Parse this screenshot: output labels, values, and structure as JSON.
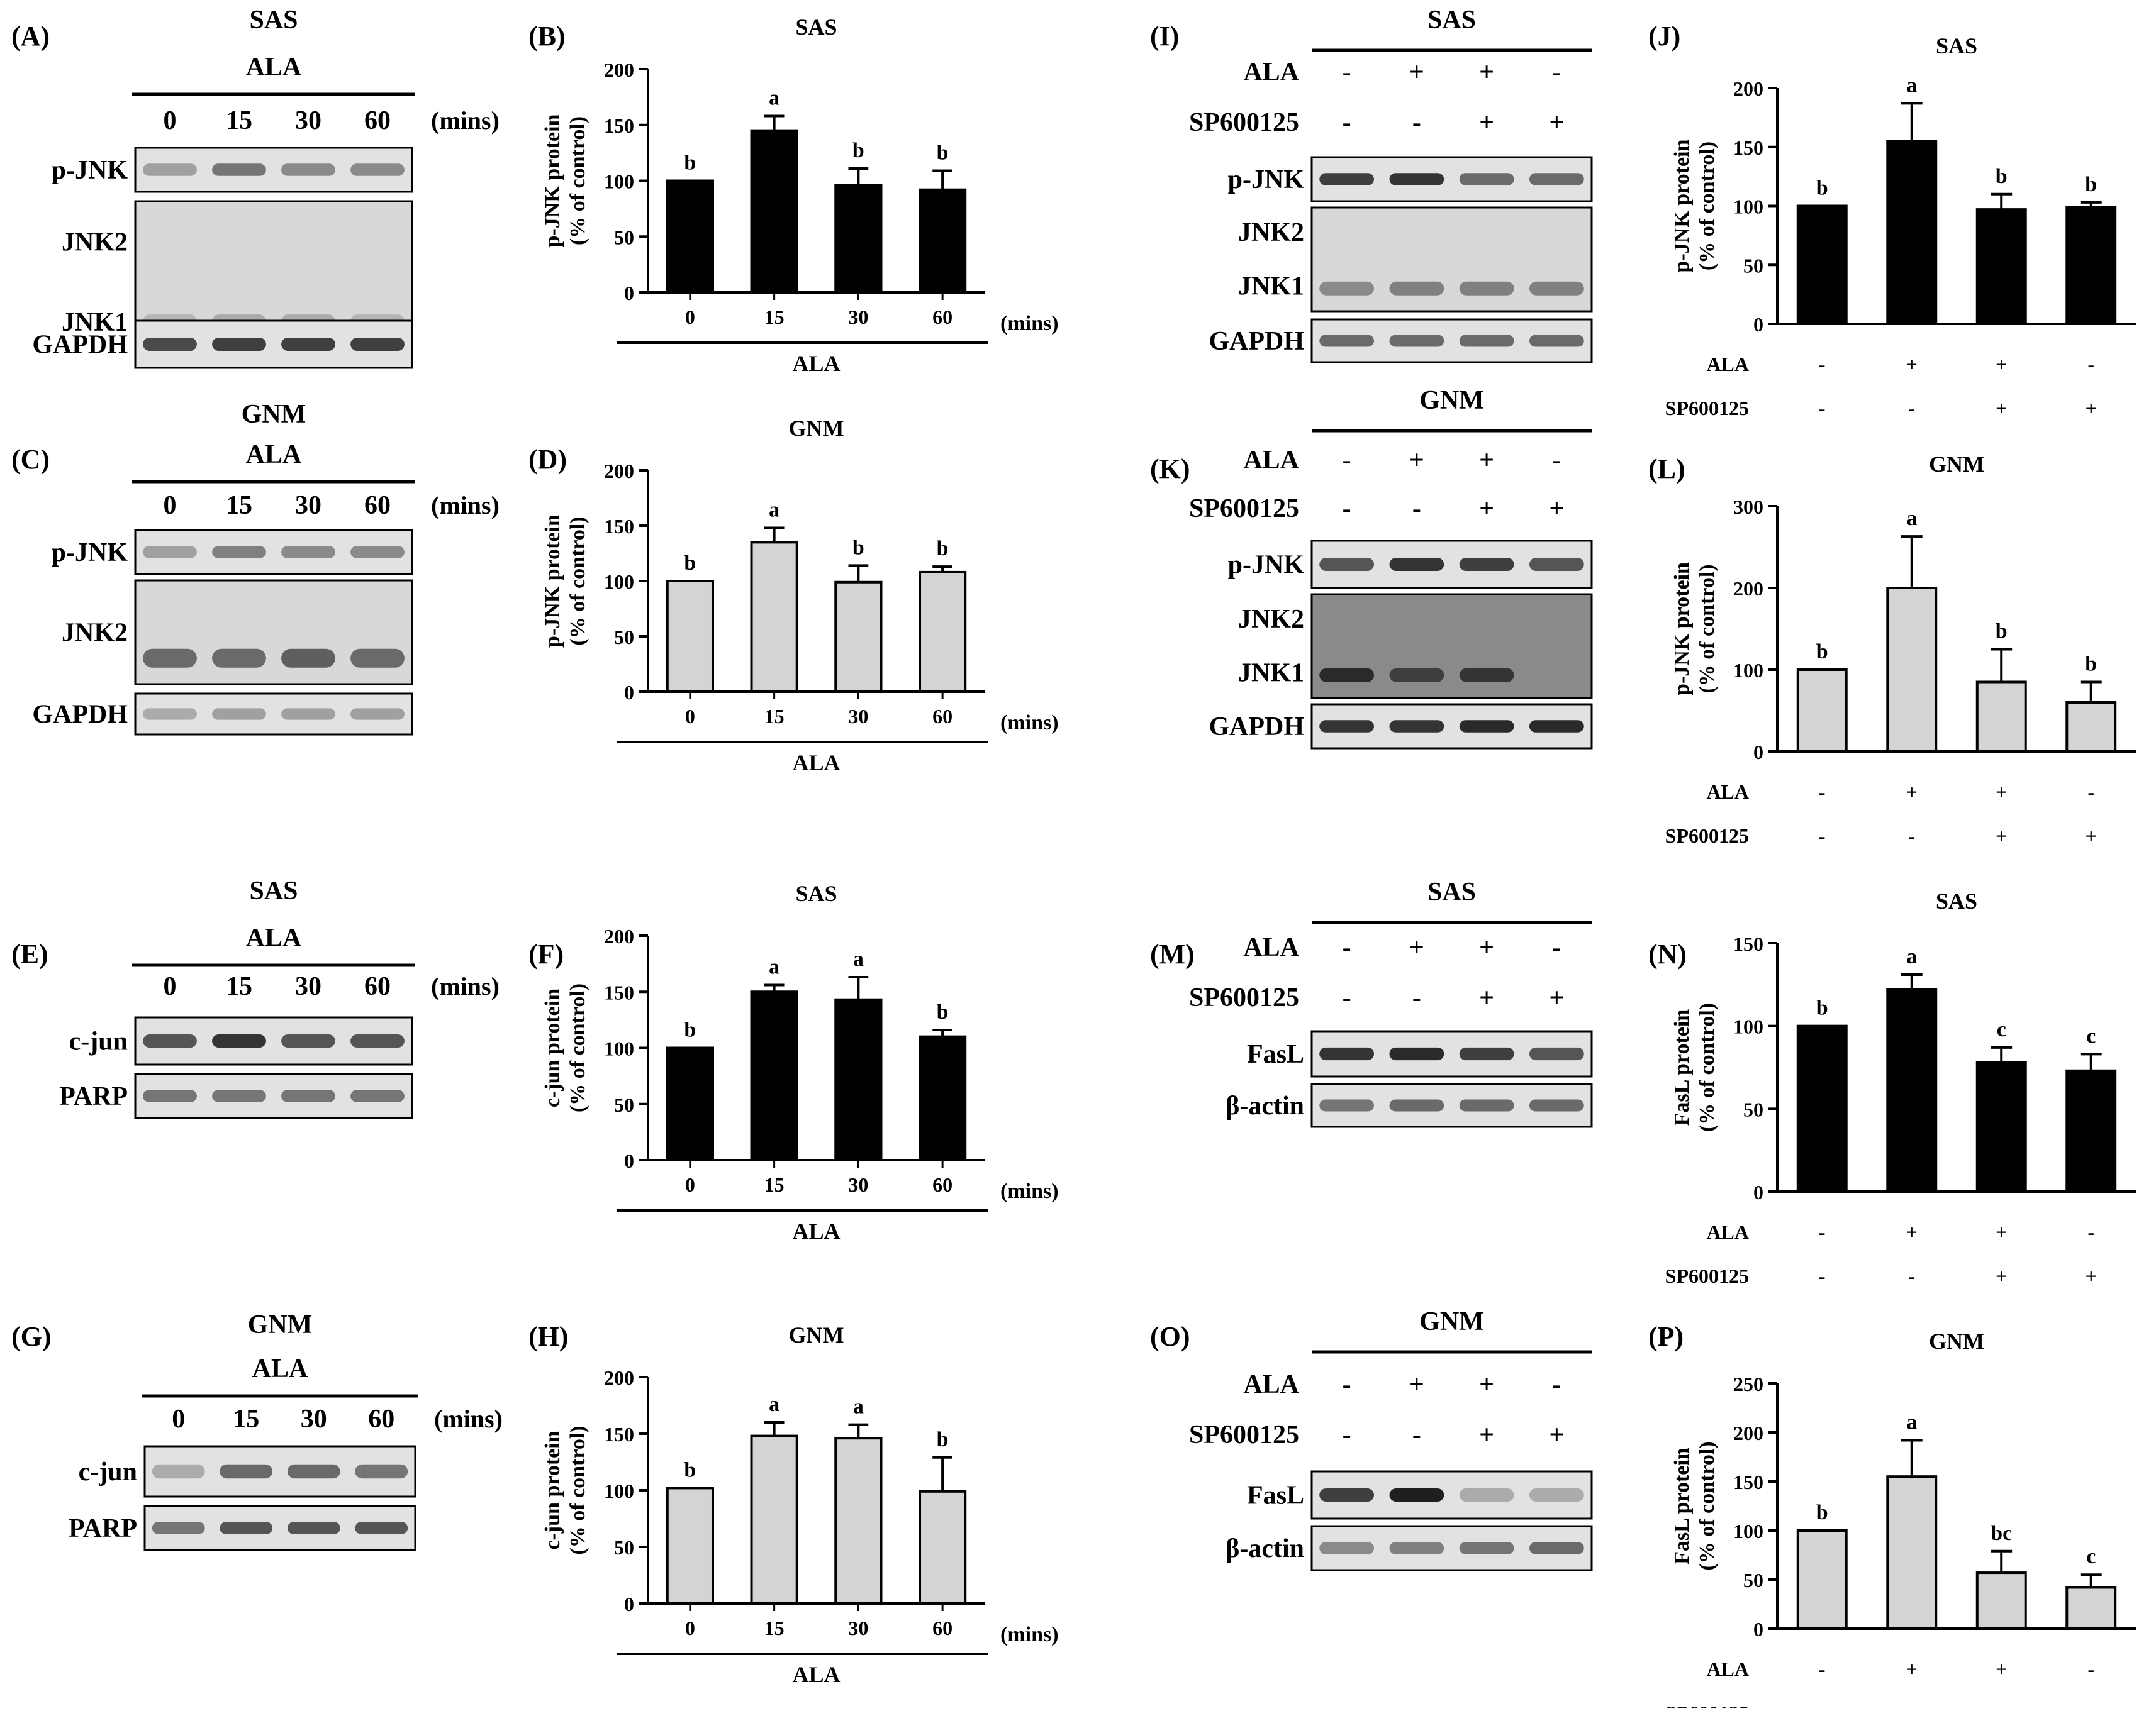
{
  "panel_letters": [
    "(A)",
    "(B)",
    "(C)",
    "(D)",
    "(E)",
    "(F)",
    "(G)",
    "(H)",
    "(I)",
    "(J)",
    "(K)",
    "(L)",
    "(M)",
    "(N)",
    "(O)",
    "(P)"
  ],
  "units": "(mins)",
  "treatment": "ALA",
  "inhibitor": "SP600125",
  "blots": [
    {
      "letter": "(A)",
      "cell": "SAS",
      "type": "time",
      "lanes": [
        "0",
        "15",
        "30",
        "60"
      ],
      "rows": [
        {
          "labels": [
            "p-JNK"
          ],
          "style": "band",
          "intensity": [
            0.35,
            0.55,
            0.45,
            0.45
          ]
        },
        {
          "labels": [
            "JNK2",
            "JNK1"
          ],
          "style": "faint2",
          "intensity": [
            0.25,
            0.3,
            0.3,
            0.25
          ]
        },
        {
          "labels": [
            "GAPDH"
          ],
          "style": "band",
          "intensity": [
            0.75,
            0.8,
            0.8,
            0.8
          ]
        }
      ]
    },
    {
      "letter": "(C)",
      "cell": "GNM",
      "type": "time",
      "lanes": [
        "0",
        "15",
        "30",
        "60"
      ],
      "rows": [
        {
          "labels": [
            "p-JNK"
          ],
          "style": "band",
          "intensity": [
            0.35,
            0.5,
            0.45,
            0.45
          ]
        },
        {
          "labels": [
            "JNK2"
          ],
          "style": "faint1",
          "intensity": [
            0.6,
            0.6,
            0.65,
            0.6
          ]
        },
        {
          "labels": [
            "GAPDH"
          ],
          "style": "band",
          "intensity": [
            0.3,
            0.35,
            0.35,
            0.35
          ]
        }
      ]
    },
    {
      "letter": "(E)",
      "cell": "SAS",
      "type": "time",
      "lanes": [
        "0",
        "15",
        "30",
        "60"
      ],
      "rows": [
        {
          "labels": [
            "c-jun"
          ],
          "style": "band",
          "intensity": [
            0.7,
            0.85,
            0.7,
            0.7
          ]
        },
        {
          "labels": [
            "PARP"
          ],
          "style": "band",
          "intensity": [
            0.55,
            0.55,
            0.55,
            0.55
          ]
        }
      ]
    },
    {
      "letter": "(G)",
      "cell": "GNM",
      "type": "time",
      "lanes": [
        "0",
        "15",
        "30",
        "60"
      ],
      "rows": [
        {
          "labels": [
            "c-jun"
          ],
          "style": "band",
          "intensity": [
            0.3,
            0.6,
            0.6,
            0.55
          ]
        },
        {
          "labels": [
            "PARP"
          ],
          "style": "band",
          "intensity": [
            0.55,
            0.7,
            0.7,
            0.7
          ]
        }
      ]
    },
    {
      "letter": "(I)",
      "cell": "SAS",
      "type": "cond",
      "ala": [
        "-",
        "+",
        "+",
        "-"
      ],
      "sp": [
        "-",
        "-",
        "+",
        "+"
      ],
      "rows": [
        {
          "labels": [
            "p-JNK"
          ],
          "style": "band",
          "intensity": [
            0.8,
            0.85,
            0.6,
            0.6
          ]
        },
        {
          "labels": [
            "JNK2",
            "JNK1"
          ],
          "style": "faint2",
          "intensity": [
            0.45,
            0.5,
            0.5,
            0.5
          ]
        },
        {
          "labels": [
            "GAPDH"
          ],
          "style": "band",
          "intensity": [
            0.6,
            0.6,
            0.6,
            0.6
          ]
        }
      ]
    },
    {
      "letter": "(K)",
      "cell": "GNM",
      "type": "cond",
      "ala": [
        "-",
        "+",
        "+",
        "-"
      ],
      "sp": [
        "-",
        "-",
        "+",
        "+"
      ],
      "rows": [
        {
          "labels": [
            "p-JNK"
          ],
          "style": "band",
          "intensity": [
            0.7,
            0.85,
            0.8,
            0.7
          ]
        },
        {
          "labels": [
            "JNK2",
            "JNK1"
          ],
          "style": "dark2",
          "intensity": [
            0.9,
            0.8,
            0.85,
            0.45
          ]
        },
        {
          "labels": [
            "GAPDH"
          ],
          "style": "band",
          "intensity": [
            0.85,
            0.85,
            0.9,
            0.9
          ]
        }
      ]
    },
    {
      "letter": "(M)",
      "cell": "SAS",
      "type": "cond",
      "ala": [
        "-",
        "+",
        "+",
        "-"
      ],
      "sp": [
        "-",
        "-",
        "+",
        "+"
      ],
      "rows": [
        {
          "labels": [
            "FasL"
          ],
          "style": "band",
          "intensity": [
            0.85,
            0.9,
            0.8,
            0.7
          ]
        },
        {
          "labels": [
            "β-actin"
          ],
          "style": "band",
          "intensity": [
            0.55,
            0.6,
            0.6,
            0.6
          ]
        }
      ]
    },
    {
      "letter": "(O)",
      "cell": "GNM",
      "type": "cond",
      "ala": [
        "-",
        "+",
        "+",
        "-"
      ],
      "sp": [
        "-",
        "-",
        "+",
        "+"
      ],
      "rows": [
        {
          "labels": [
            "FasL"
          ],
          "style": "band",
          "intensity": [
            0.8,
            0.95,
            0.3,
            0.3
          ]
        },
        {
          "labels": [
            "β-actin"
          ],
          "style": "band",
          "intensity": [
            0.45,
            0.5,
            0.55,
            0.6
          ]
        }
      ]
    }
  ],
  "chart_data": [
    {
      "letter": "(B)",
      "type": "bar",
      "title": "SAS",
      "ylabel": [
        "p-JNK protein",
        "(% of control)"
      ],
      "ylim": [
        0,
        200
      ],
      "ticks": [
        0,
        50,
        100,
        150,
        200
      ],
      "fill": "#000000",
      "xtype": "time",
      "categories": [
        "0",
        "15",
        "30",
        "60"
      ],
      "values": [
        100,
        145,
        96,
        92
      ],
      "errors": [
        0,
        13,
        15,
        17
      ],
      "letters": [
        "b",
        "a",
        "b",
        "b"
      ]
    },
    {
      "letter": "(D)",
      "type": "bar",
      "title": "GNM",
      "ylabel": [
        "p-JNK protein",
        "(% of control)"
      ],
      "ylim": [
        0,
        200
      ],
      "ticks": [
        0,
        50,
        100,
        150,
        200
      ],
      "fill": "#d4d4d4",
      "xtype": "time",
      "categories": [
        "0",
        "15",
        "30",
        "60"
      ],
      "values": [
        100,
        135,
        99,
        108
      ],
      "errors": [
        0,
        13,
        15,
        5
      ],
      "letters": [
        "b",
        "a",
        "b",
        "b"
      ]
    },
    {
      "letter": "(F)",
      "type": "bar",
      "title": "SAS",
      "ylabel": [
        "c-jun protein",
        "(% of control)"
      ],
      "ylim": [
        0,
        200
      ],
      "ticks": [
        0,
        50,
        100,
        150,
        200
      ],
      "fill": "#000000",
      "xtype": "time",
      "categories": [
        "0",
        "15",
        "30",
        "60"
      ],
      "values": [
        100,
        150,
        143,
        110
      ],
      "errors": [
        0,
        6,
        20,
        6
      ],
      "letters": [
        "b",
        "a",
        "a",
        "b"
      ]
    },
    {
      "letter": "(H)",
      "type": "bar",
      "title": "GNM",
      "ylabel": [
        "c-jun protein",
        "(% of control)"
      ],
      "ylim": [
        0,
        200
      ],
      "ticks": [
        0,
        50,
        100,
        150,
        200
      ],
      "fill": "#d4d4d4",
      "xtype": "time",
      "categories": [
        "0",
        "15",
        "30",
        "60"
      ],
      "values": [
        102,
        148,
        146,
        99
      ],
      "errors": [
        0,
        12,
        12,
        30
      ],
      "letters": [
        "b",
        "a",
        "a",
        "b"
      ]
    },
    {
      "letter": "(J)",
      "type": "bar",
      "title": "SAS",
      "ylabel": [
        "p-JNK protein",
        "(% of control)"
      ],
      "ylim": [
        0,
        200
      ],
      "ticks": [
        0,
        50,
        100,
        150,
        200
      ],
      "fill": "#000000",
      "xtype": "cond",
      "ala": [
        "-",
        "+",
        "+",
        "-"
      ],
      "sp": [
        "-",
        "-",
        "+",
        "+"
      ],
      "values": [
        100,
        155,
        97,
        99
      ],
      "errors": [
        0,
        32,
        13,
        4
      ],
      "letters": [
        "b",
        "a",
        "b",
        "b"
      ]
    },
    {
      "letter": "(L)",
      "type": "bar",
      "title": "GNM",
      "ylabel": [
        "p-JNK protein",
        "(% of control)"
      ],
      "ylim": [
        0,
        300
      ],
      "ticks": [
        0,
        100,
        200,
        300
      ],
      "fill": "#d4d4d4",
      "xtype": "cond",
      "ala": [
        "-",
        "+",
        "+",
        "-"
      ],
      "sp": [
        "-",
        "-",
        "+",
        "+"
      ],
      "values": [
        100,
        200,
        85,
        60
      ],
      "errors": [
        0,
        63,
        40,
        25
      ],
      "letters": [
        "b",
        "a",
        "b",
        "b"
      ]
    },
    {
      "letter": "(N)",
      "type": "bar",
      "title": "SAS",
      "ylabel": [
        "FasL protein",
        "(% of control)"
      ],
      "ylim": [
        0,
        150
      ],
      "ticks": [
        0,
        50,
        100,
        150
      ],
      "fill": "#000000",
      "xtype": "cond",
      "ala": [
        "-",
        "+",
        "+",
        "-"
      ],
      "sp": [
        "-",
        "-",
        "+",
        "+"
      ],
      "values": [
        100,
        122,
        78,
        73
      ],
      "errors": [
        0,
        9,
        9,
        10
      ],
      "letters": [
        "b",
        "a",
        "c",
        "c"
      ]
    },
    {
      "letter": "(P)",
      "type": "bar",
      "title": "GNM",
      "ylabel": [
        "FasL protein",
        "(% of control)"
      ],
      "ylim": [
        0,
        250
      ],
      "ticks": [
        0,
        50,
        100,
        150,
        200,
        250
      ],
      "fill": "#d4d4d4",
      "xtype": "cond",
      "ala": [
        "-",
        "+",
        "+",
        "-"
      ],
      "sp": [
        "-",
        "-",
        "+",
        "+"
      ],
      "values": [
        100,
        155,
        57,
        42
      ],
      "errors": [
        0,
        37,
        22,
        13
      ],
      "letters": [
        "b",
        "a",
        "bc",
        "c"
      ]
    }
  ]
}
